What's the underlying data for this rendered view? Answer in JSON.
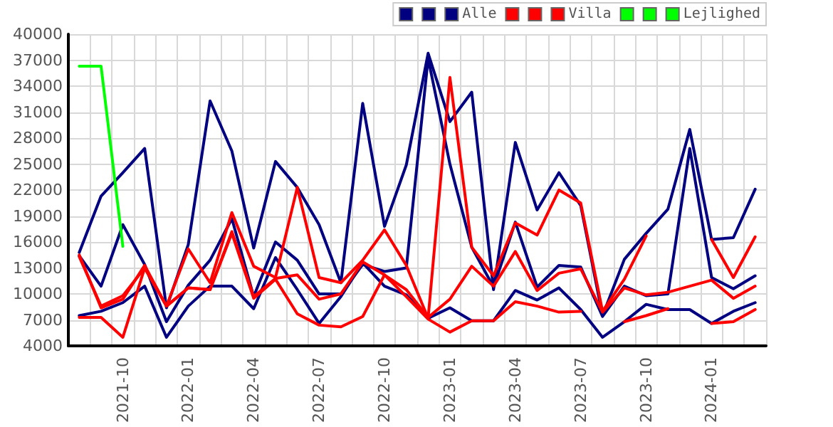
{
  "chart_data": {
    "type": "line",
    "categories": [
      null,
      null,
      "2021-10",
      null,
      null,
      "2022-01",
      null,
      null,
      "2022-04",
      null,
      null,
      "2022-07",
      null,
      null,
      "2022-10",
      null,
      null,
      "2023-01",
      null,
      null,
      "2023-04",
      null,
      null,
      "2023-07",
      null,
      null,
      "2023-10",
      null,
      null,
      "2024-01",
      null,
      null
    ],
    "ylim": [
      4000,
      40000
    ],
    "yticks": [
      4000,
      7000,
      10000,
      13000,
      16000,
      19000,
      22000,
      25000,
      28000,
      31000,
      34000,
      37000,
      40000
    ],
    "grid": true,
    "legend": "top right",
    "marker": "none",
    "line_style": "solid",
    "series": [
      {
        "color": "#000080",
        "values": [
          14800,
          21300,
          24000,
          26800,
          8400,
          15700,
          32300,
          26500,
          15300,
          25300,
          22300,
          18000,
          11300,
          32000,
          17800,
          24900,
          37800,
          29900,
          33300,
          10500,
          27500,
          19700,
          24000,
          20200,
          7500,
          14000,
          17000,
          19800,
          29000,
          16300,
          16500,
          22100
        ]
      },
      {
        "color": "#000080",
        "values": [
          14400,
          10900,
          18000,
          13400,
          6800,
          11000,
          13900,
          18700,
          9700,
          16000,
          13900,
          10000,
          10000,
          13400,
          12600,
          13000,
          37200,
          25000,
          15400,
          10800,
          18300,
          10800,
          13300,
          13100,
          7400,
          10900,
          9800,
          10000,
          26800,
          11900,
          10600,
          12100
        ]
      },
      {
        "name": "Alle",
        "color": "#000080",
        "values": [
          7500,
          8000,
          9000,
          10900,
          5000,
          8600,
          10900,
          10900,
          8300,
          14200,
          10500,
          6600,
          9700,
          13600,
          10900,
          9900,
          7200,
          8400,
          6900,
          6900,
          10400,
          9300,
          10700,
          8200,
          5000,
          6800,
          8800,
          8200,
          8200,
          6600,
          8000,
          9000
        ]
      },
      {
        "color": "#ff0000",
        "values": [
          14500,
          8400,
          9400,
          13300,
          8600,
          15200,
          11300,
          19400,
          13200,
          11900,
          22300,
          11900,
          11300,
          13900,
          17400,
          13300,
          7200,
          35000,
          15400,
          12100,
          18200,
          16800,
          22000,
          20500,
          8000,
          11700,
          16700,
          null,
          null,
          16300,
          11900,
          16600
        ]
      },
      {
        "color": "#ff0000",
        "values": [
          14300,
          8600,
          9800,
          13000,
          8600,
          10700,
          10500,
          17200,
          9700,
          11800,
          12200,
          9400,
          10000,
          13700,
          12200,
          10500,
          7300,
          9400,
          13200,
          10900,
          14900,
          10400,
          12400,
          12900,
          7900,
          10700,
          9900,
          10200,
          10900,
          11600,
          9500,
          10900
        ]
      },
      {
        "name": "Villa",
        "color": "#ff0000",
        "values": [
          7300,
          7300,
          5000,
          13000,
          8600,
          10700,
          10500,
          17000,
          9500,
          11700,
          7700,
          6400,
          6200,
          7400,
          12200,
          9700,
          7100,
          5600,
          6900,
          6900,
          9100,
          8600,
          7900,
          8000,
          null,
          6800,
          7500,
          8300,
          null,
          6600,
          6800,
          8200
        ]
      },
      {
        "color": "#00ff00",
        "values": [
          null,
          null,
          null,
          null,
          null,
          null,
          null,
          null,
          null,
          null,
          null,
          null,
          null,
          null,
          null,
          null,
          null,
          null,
          null,
          null,
          null,
          null,
          null,
          null,
          null,
          null,
          null,
          null,
          null,
          null,
          null,
          null
        ]
      },
      {
        "color": "#00ff00",
        "values": [
          null,
          null,
          null,
          null,
          null,
          null,
          null,
          null,
          null,
          null,
          null,
          null,
          null,
          null,
          null,
          null,
          null,
          null,
          null,
          null,
          null,
          null,
          null,
          null,
          null,
          null,
          null,
          null,
          null,
          null,
          null,
          null
        ]
      },
      {
        "name": "Lejlighed",
        "color": "#00ff00",
        "values": [
          36300,
          36300,
          15500,
          null,
          null,
          null,
          null,
          null,
          null,
          null,
          null,
          null,
          null,
          null,
          null,
          null,
          null,
          null,
          null,
          null,
          null,
          null,
          null,
          null,
          null,
          null,
          null,
          null,
          null,
          null,
          null,
          null
        ]
      }
    ]
  }
}
